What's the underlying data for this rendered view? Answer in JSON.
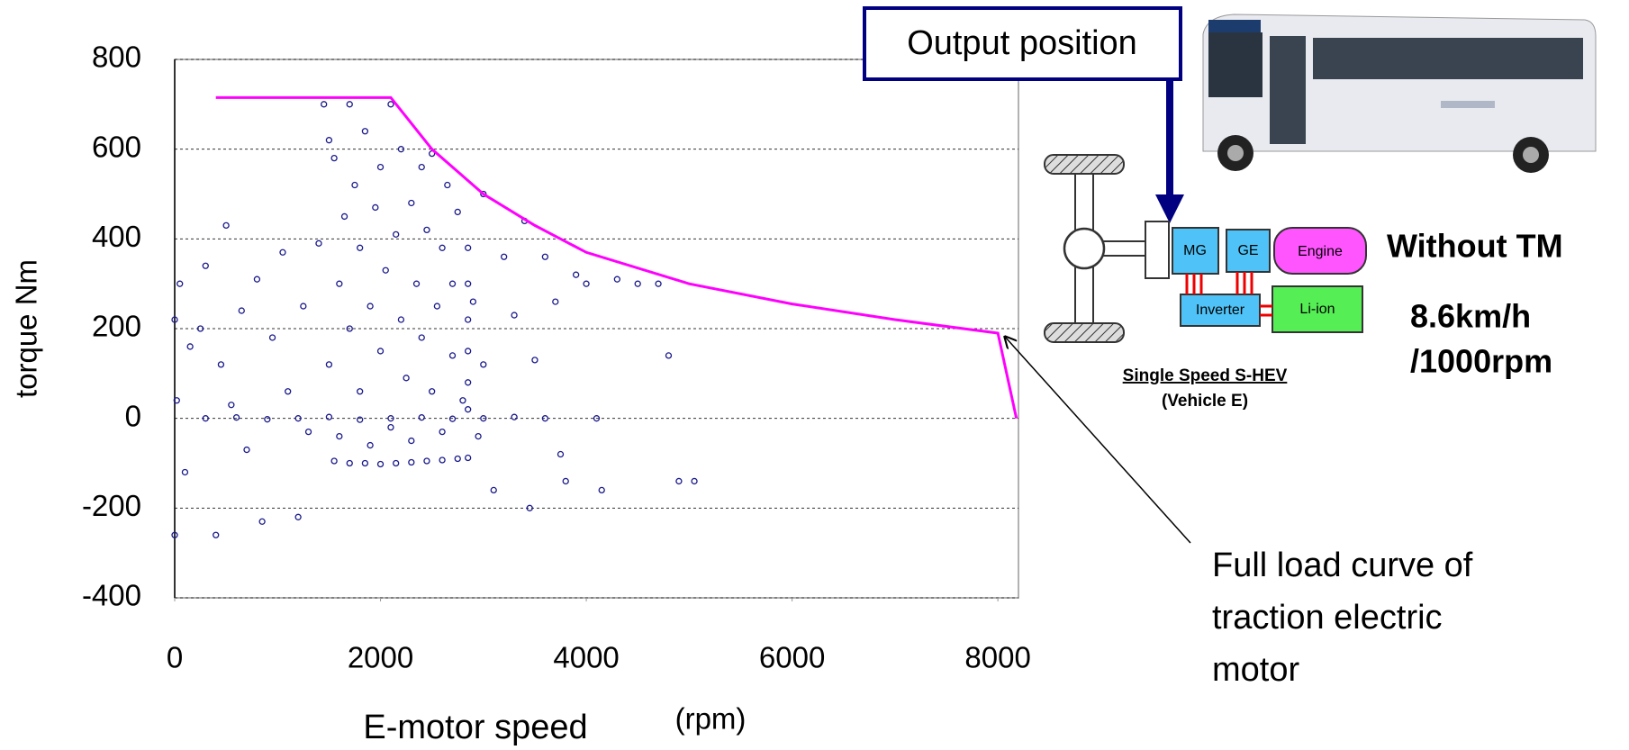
{
  "chart_data": {
    "type": "scatter",
    "x_label": "E-motor speed",
    "x_unit": "(rpm)",
    "y_label": "torque  Nm",
    "xlim": [
      0,
      8200
    ],
    "xticks": [
      0,
      2000,
      4000,
      6000,
      8000
    ],
    "ylim": [
      -400,
      800
    ],
    "yticks": [
      -400,
      -200,
      0,
      200,
      400,
      600,
      800
    ],
    "grid": true,
    "series": [
      {
        "type": "scatter",
        "color": "#1a1a8c",
        "x": [
          0,
          0,
          20,
          50,
          100,
          150,
          250,
          300,
          400,
          450,
          500,
          550,
          650,
          700,
          800,
          850,
          950,
          1050,
          1100,
          1200,
          1250,
          1300,
          1400,
          1450,
          1500,
          1500,
          1550,
          1600,
          1600,
          1650,
          1700,
          1700,
          1750,
          1800,
          1800,
          1850,
          1900,
          1900,
          1950,
          2000,
          2000,
          2050,
          2100,
          2100,
          2150,
          2200,
          2200,
          2250,
          2300,
          2300,
          2350,
          2400,
          2400,
          2450,
          2500,
          2500,
          2550,
          2600,
          2600,
          2650,
          2700,
          2700,
          2750,
          2800,
          2850,
          2850,
          2850,
          2850,
          2850,
          2850,
          2900,
          2950,
          3000,
          3000,
          3100,
          3200,
          3300,
          3400,
          3450,
          3500,
          3600,
          3700,
          3750,
          3800,
          3900,
          4000,
          4100,
          4150,
          4300,
          4500,
          4700,
          4800,
          4900,
          5050,
          1550,
          1700,
          1850,
          2000,
          2150,
          2300,
          2450,
          2600,
          2750,
          2850,
          300,
          600,
          900,
          1200,
          1500,
          1800,
          2100,
          2400,
          2700,
          3000,
          3300,
          3600
        ],
        "y": [
          -260,
          220,
          40,
          300,
          -120,
          160,
          200,
          340,
          -260,
          120,
          430,
          30,
          240,
          -70,
          310,
          -230,
          180,
          370,
          60,
          -220,
          250,
          -30,
          390,
          700,
          620,
          120,
          580,
          300,
          -40,
          450,
          200,
          700,
          520,
          380,
          60,
          640,
          250,
          -60,
          470,
          560,
          150,
          330,
          700,
          -20,
          410,
          600,
          220,
          90,
          480,
          -50,
          300,
          560,
          180,
          420,
          60,
          590,
          250,
          380,
          -30,
          520,
          140,
          300,
          460,
          40,
          380,
          300,
          220,
          150,
          80,
          20,
          260,
          -40,
          500,
          120,
          -160,
          360,
          230,
          440,
          -200,
          130,
          360,
          260,
          -80,
          -140,
          320,
          300,
          0,
          -160,
          310,
          300,
          300,
          140,
          -140,
          -140,
          -95,
          -100,
          -100,
          -102,
          -100,
          -98,
          -95,
          -93,
          -90,
          -88,
          0,
          2,
          -2,
          0,
          3,
          -3,
          0,
          2,
          -1,
          0,
          3,
          0
        ]
      },
      {
        "type": "line",
        "color": "#ff00ff",
        "x": [
          400,
          2100,
          2500,
          3000,
          3500,
          4000,
          5000,
          6000,
          7000,
          8000,
          8180
        ],
        "y": [
          715,
          715,
          600,
          500,
          430,
          370,
          300,
          255,
          220,
          190,
          0
        ]
      }
    ]
  },
  "callouts": {
    "output_position": "Output position",
    "full_load": [
      "Full load curve of",
      "traction electric",
      "motor"
    ]
  },
  "notes": {
    "without_tm": "Without TM",
    "ratio": [
      "8.6km/h",
      "/1000rpm"
    ]
  },
  "diagram": {
    "mg": "MG",
    "ge": "GE",
    "engine": "Engine",
    "inverter": "Inverter",
    "battery": "Li-ion",
    "title": "Single Speed S-HEV",
    "subtitle": "(Vehicle E)"
  }
}
